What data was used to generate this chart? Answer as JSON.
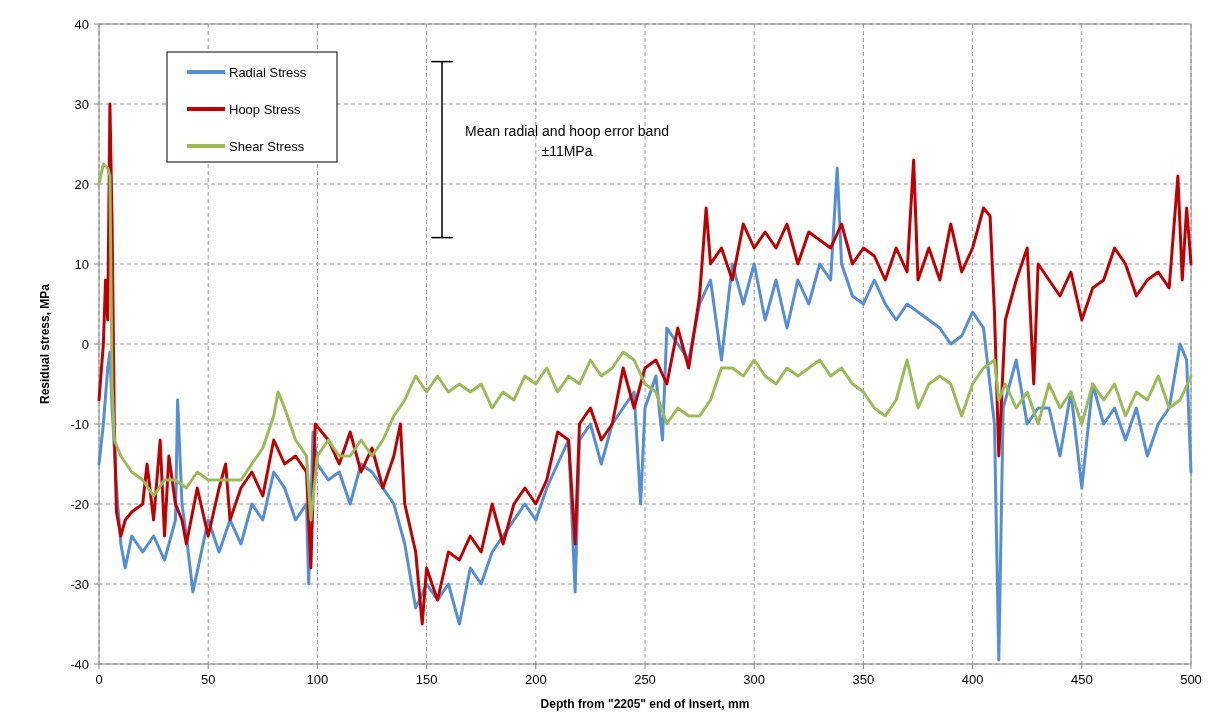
{
  "chart_data": {
    "type": "line",
    "xlabel": "Depth from \"2205\" end of Insert, mm",
    "ylabel": "Residual stress, MPa",
    "xlim": [
      0,
      500
    ],
    "xticks": [
      0,
      50,
      100,
      150,
      200,
      250,
      300,
      350,
      400,
      450,
      500
    ],
    "ylim": [
      -40,
      40
    ],
    "yticks": [
      -40,
      -30,
      -20,
      -10,
      0,
      10,
      20,
      30,
      40
    ],
    "grid": true,
    "legend": "top left",
    "marker": "none",
    "line_style": "solid",
    "annotations": [
      "Mean radial and hoop error band\n±11MPa"
    ],
    "series": [
      {
        "name": "Radial Stress",
        "color": "#558ed5",
        "x": [
          0,
          2,
          4,
          5,
          6,
          8,
          10,
          12,
          15,
          20,
          25,
          30,
          35,
          36,
          38,
          40,
          43,
          50,
          55,
          60,
          65,
          70,
          75,
          80,
          85,
          90,
          95,
          96,
          98,
          100,
          105,
          110,
          115,
          120,
          125,
          130,
          135,
          140,
          145,
          150,
          155,
          160,
          165,
          170,
          175,
          180,
          185,
          190,
          195,
          200,
          205,
          210,
          215,
          218,
          220,
          225,
          230,
          235,
          240,
          245,
          248,
          250,
          255,
          258,
          260,
          265,
          270,
          275,
          280,
          285,
          290,
          295,
          300,
          305,
          310,
          315,
          320,
          325,
          330,
          335,
          338,
          340,
          345,
          350,
          355,
          360,
          365,
          370,
          375,
          380,
          385,
          390,
          395,
          400,
          405,
          410,
          412,
          414,
          420,
          425,
          430,
          435,
          440,
          445,
          450,
          455,
          460,
          465,
          470,
          475,
          480,
          485,
          490,
          495,
          498,
          500
        ],
        "values": [
          -15,
          -10,
          -3,
          -1,
          -8,
          -18,
          -25,
          -28,
          -24,
          -26,
          -24,
          -27,
          -22,
          -7,
          -20,
          -24,
          -31,
          -22,
          -26,
          -22,
          -25,
          -20,
          -22,
          -16,
          -18,
          -22,
          -20,
          -30,
          -11,
          -15,
          -17,
          -16,
          -20,
          -15,
          -16,
          -18,
          -20,
          -25,
          -33,
          -30,
          -32,
          -30,
          -35,
          -28,
          -30,
          -26,
          -24,
          -22,
          -20,
          -22,
          -18,
          -15,
          -12,
          -31,
          -12,
          -10,
          -15,
          -10,
          -8,
          -6,
          -20,
          -8,
          -4,
          -12,
          2,
          0,
          -2,
          5,
          8,
          -2,
          10,
          5,
          10,
          3,
          8,
          2,
          8,
          5,
          10,
          8,
          22,
          10,
          6,
          5,
          8,
          5,
          3,
          5,
          4,
          3,
          2,
          0,
          1,
          4,
          2,
          -10,
          -39.5,
          -8,
          -2,
          -10,
          -8,
          -8,
          -14,
          -6,
          -18,
          -5,
          -10,
          -8,
          -12,
          -8,
          -14,
          -10,
          -8,
          0,
          -2,
          -16
        ]
      },
      {
        "name": "Hoop Stress",
        "color": "#c00000",
        "x": [
          0,
          2,
          3,
          4,
          5,
          6,
          7,
          8,
          10,
          12,
          15,
          20,
          22,
          25,
          28,
          30,
          32,
          35,
          38,
          40,
          45,
          50,
          55,
          58,
          60,
          65,
          70,
          75,
          80,
          85,
          90,
          95,
          97,
          99,
          105,
          110,
          115,
          120,
          125,
          130,
          135,
          138,
          140,
          145,
          148,
          150,
          155,
          160,
          165,
          170,
          175,
          180,
          185,
          190,
          195,
          200,
          205,
          210,
          215,
          218,
          220,
          225,
          230,
          235,
          240,
          245,
          250,
          255,
          260,
          265,
          270,
          275,
          278,
          280,
          285,
          290,
          295,
          300,
          305,
          310,
          315,
          320,
          325,
          330,
          335,
          340,
          345,
          350,
          355,
          360,
          365,
          370,
          373,
          375,
          380,
          385,
          390,
          395,
          400,
          405,
          408,
          410,
          412,
          415,
          420,
          425,
          428,
          430,
          435,
          440,
          445,
          450,
          455,
          460,
          465,
          470,
          475,
          480,
          485,
          490,
          494,
          496,
          498,
          500
        ],
        "values": [
          -7,
          0,
          8,
          3,
          30,
          15,
          -10,
          -21,
          -24,
          -22,
          -21,
          -20,
          -15,
          -22,
          -12,
          -24,
          -14,
          -20,
          -22,
          -25,
          -18,
          -24,
          -18,
          -15,
          -22,
          -18,
          -16,
          -19,
          -12,
          -15,
          -14,
          -16,
          -28,
          -10,
          -12,
          -15,
          -11,
          -16,
          -13,
          -18,
          -14,
          -10,
          -20,
          -26,
          -35,
          -28,
          -32,
          -26,
          -27,
          -24,
          -26,
          -20,
          -25,
          -20,
          -18,
          -20,
          -17,
          -11,
          -12,
          -25,
          -10,
          -8,
          -12,
          -10,
          -3,
          -8,
          -3,
          -2,
          -5,
          2,
          -3,
          6,
          17,
          10,
          12,
          8,
          15,
          12,
          14,
          12,
          15,
          10,
          14,
          13,
          12,
          15,
          10,
          12,
          11,
          8,
          12,
          9,
          23,
          8,
          12,
          8,
          15,
          9,
          12,
          17,
          16,
          4,
          -14,
          3,
          8,
          12,
          -5,
          10,
          8,
          6,
          9,
          3,
          7,
          8,
          12,
          10,
          6,
          8,
          9,
          7,
          21,
          8,
          17,
          10
        ]
      },
      {
        "name": "Shear Stress",
        "color": "#9bbb59",
        "x": [
          0,
          2,
          4,
          5,
          6,
          7,
          10,
          15,
          20,
          25,
          30,
          35,
          40,
          45,
          50,
          55,
          60,
          65,
          70,
          75,
          80,
          82,
          85,
          90,
          95,
          97,
          100,
          105,
          110,
          115,
          120,
          125,
          130,
          135,
          140,
          145,
          150,
          155,
          160,
          165,
          170,
          175,
          180,
          185,
          190,
          195,
          200,
          205,
          210,
          215,
          220,
          225,
          230,
          235,
          240,
          245,
          250,
          255,
          260,
          265,
          270,
          275,
          280,
          285,
          290,
          295,
          300,
          305,
          310,
          315,
          320,
          325,
          330,
          335,
          340,
          345,
          350,
          355,
          360,
          365,
          370,
          375,
          380,
          385,
          390,
          395,
          400,
          405,
          410,
          412,
          415,
          420,
          425,
          430,
          435,
          440,
          445,
          450,
          455,
          460,
          465,
          470,
          475,
          480,
          485,
          490,
          495,
          500
        ],
        "values": [
          20,
          22.5,
          22,
          21,
          -5,
          -12,
          -14,
          -16,
          -17,
          -19,
          -17,
          -17,
          -18,
          -16,
          -17,
          -17,
          -17,
          -17,
          -15,
          -13,
          -9,
          -6,
          -8,
          -12,
          -14,
          -22,
          -14,
          -12,
          -14,
          -14,
          -12,
          -14,
          -12,
          -9,
          -7,
          -4,
          -6,
          -4,
          -6,
          -5,
          -6,
          -5,
          -8,
          -6,
          -7,
          -4,
          -5,
          -3,
          -6,
          -4,
          -5,
          -2,
          -4,
          -3,
          -1,
          -2,
          -5,
          -6,
          -10,
          -8,
          -9,
          -9,
          -7,
          -3,
          -3,
          -4,
          -2,
          -4,
          -5,
          -3,
          -4,
          -3,
          -2,
          -4,
          -3,
          -5,
          -6,
          -8,
          -9,
          -7,
          -2,
          -8,
          -5,
          -4,
          -5,
          -9,
          -5,
          -3,
          -2,
          -7,
          -5,
          -8,
          -6,
          -10,
          -5,
          -8,
          -6,
          -10,
          -5,
          -7,
          -5,
          -9,
          -6,
          -7,
          -4,
          -8,
          -7,
          -4
        ]
      }
    ]
  }
}
